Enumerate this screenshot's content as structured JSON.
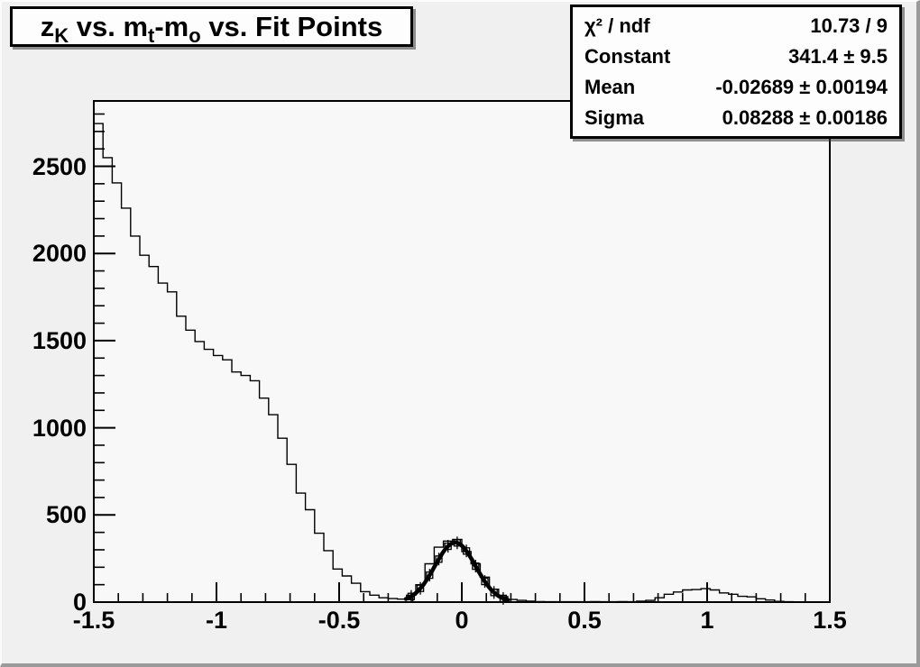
{
  "title": {
    "segments": [
      {
        "text": "z"
      },
      {
        "text": "K",
        "sub": true
      },
      {
        "text": " vs. m"
      },
      {
        "text": "t",
        "sub": true
      },
      {
        "text": "-m"
      },
      {
        "text": "o",
        "sub": true
      },
      {
        "text": " vs. Fit Points"
      }
    ]
  },
  "stats_box": {
    "rows": [
      {
        "label": "χ² / ndf",
        "value": "10.73 / 9"
      },
      {
        "label": "Constant",
        "value": "341.4 ± 9.5"
      },
      {
        "label": "Mean",
        "value": "-0.02689 ± 0.00194"
      },
      {
        "label": "Sigma",
        "value": "0.08288 ± 0.00186"
      }
    ]
  },
  "axes": {
    "x": {
      "min": -1.5,
      "max": 1.5,
      "major_ticks": [
        -1.5,
        -1,
        -0.5,
        0,
        0.5,
        1,
        1.5
      ],
      "tick_labels": [
        "-1.5",
        "-1",
        "-0.5",
        "0",
        "0.5",
        "1",
        "1.5"
      ],
      "minor_step": 0.1
    },
    "y": {
      "min": 0,
      "max": 2875,
      "major_ticks": [
        500,
        1000,
        1500,
        2000,
        2500
      ],
      "tick_labels": [
        "0",
        "500",
        "1000",
        "1500",
        "2000",
        "2500"
      ],
      "label_values": [
        0,
        500,
        1000,
        1500,
        2000,
        2500
      ],
      "minor_step": 100
    }
  },
  "colors": {
    "canvas_bg": "#f0f0f0",
    "frame_bg": "#f8f8f8",
    "line": "#000000",
    "box_bg": "#fdfdfd"
  },
  "chart_data": {
    "type": "bar",
    "subtype": "histogram-with-gaussian-fit",
    "title": "z_K vs. m_t-m_o vs. Fit Points",
    "xlabel": "",
    "ylabel": "",
    "xlim": [
      -1.5,
      1.5
    ],
    "ylim": [
      0,
      2875
    ],
    "grid": false,
    "legend": false,
    "bin_start": -1.5,
    "bin_width": 0.0375,
    "values": [
      2745,
      2550,
      2405,
      2260,
      2100,
      1990,
      1925,
      1830,
      1780,
      1640,
      1560,
      1495,
      1450,
      1415,
      1390,
      1320,
      1300,
      1270,
      1170,
      1075,
      940,
      790,
      625,
      530,
      395,
      295,
      190,
      150,
      108,
      60,
      40,
      25,
      20,
      17,
      40,
      100,
      220,
      315,
      350,
      360,
      290,
      220,
      143,
      74,
      31,
      15,
      10,
      5,
      3,
      2,
      2,
      2,
      2,
      2,
      3,
      2,
      2,
      3,
      2,
      5,
      10,
      25,
      45,
      58,
      70,
      72,
      77,
      70,
      53,
      45,
      33,
      30,
      19,
      12,
      4,
      2,
      1,
      1,
      1,
      1
    ],
    "fit": {
      "model": "gaussian",
      "constant": 341.4,
      "constant_err": 9.5,
      "mean": -0.02689,
      "mean_err": 0.00194,
      "sigma": 0.08288,
      "sigma_err": 0.00186,
      "chi2": 10.73,
      "ndf": 9,
      "draw_range": [
        -0.228,
        0.19
      ],
      "marker_min_value": 18
    }
  }
}
